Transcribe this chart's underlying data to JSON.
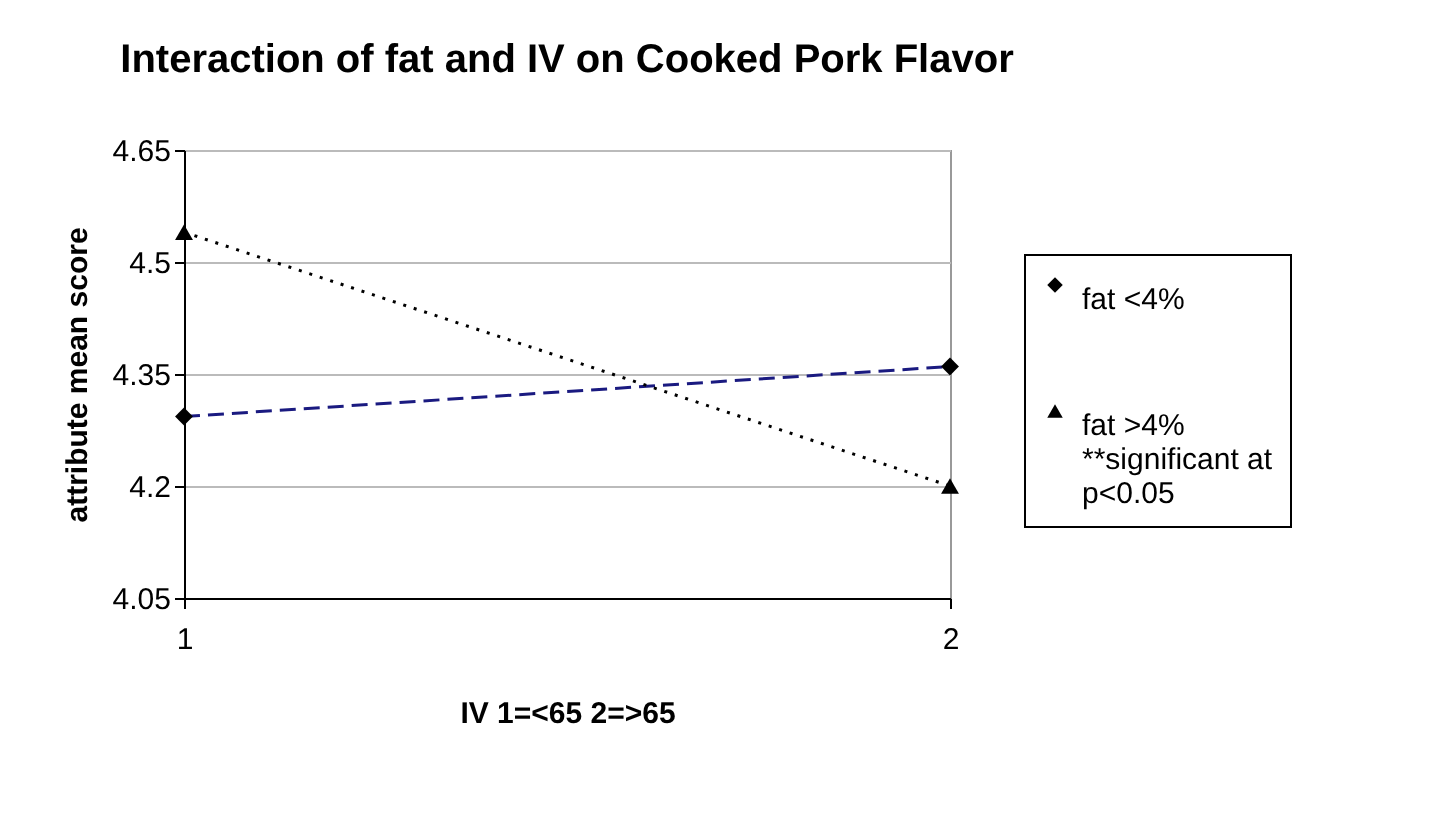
{
  "chart_data": {
    "type": "line",
    "title": "Interaction of fat and IV on Cooked Pork Flavor",
    "xlabel": "IV 1=<65 2=>65",
    "ylabel": "attribute mean score",
    "x": [
      1,
      2
    ],
    "xlim": [
      1,
      2
    ],
    "xticks": [
      1,
      2
    ],
    "ylim": [
      4.05,
      4.65
    ],
    "yticks": [
      4.05,
      4.2,
      4.35,
      4.5,
      4.65
    ],
    "grid": "y",
    "legend": "right",
    "annotations": [
      "**significant at p<0.05"
    ],
    "series": [
      {
        "name": "fat <4%",
        "color": "#1a1a80",
        "values": [
          4.293,
          4.36
        ],
        "marker": "diamond",
        "line_style": "dashed"
      },
      {
        "name": "fat >4%",
        "color": "#000000",
        "values": [
          4.54,
          4.2
        ],
        "marker": "triangle",
        "line_style": "dotted"
      }
    ]
  }
}
